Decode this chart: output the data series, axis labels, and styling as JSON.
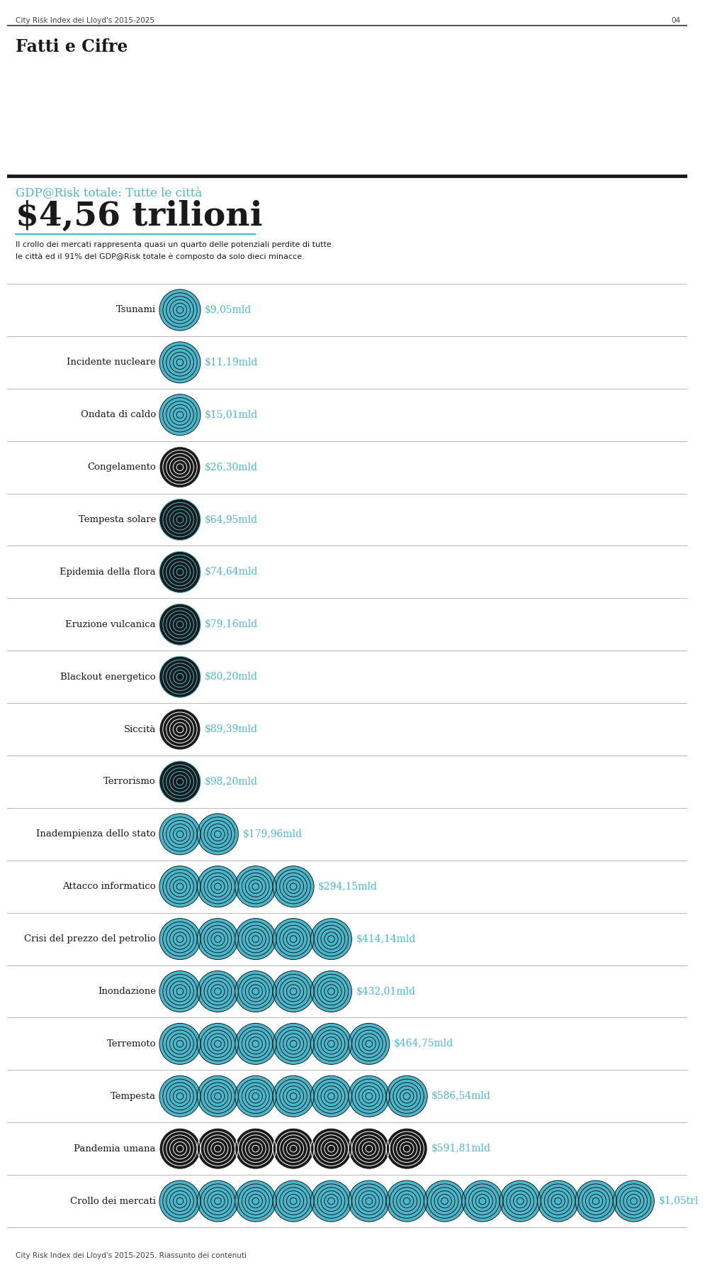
{
  "header_line1": "City Risk Index dei Lloyd's 2015-2025",
  "header_page": "04",
  "section_title": "Fatti e Cifre",
  "gdp_label": "GDP@Risk totale: Tutte le città",
  "gdp_value": "$4,56 trilioni",
  "description_line1": "Il crollo dei mercati rappresenta quasi un quarto delle potenziali perdite di tutte",
  "description_line2": "le città ed il 91% del GDP@Risk totale è composto da solo dieci minacce.",
  "footer": "City Risk Index dei Lloyd's 2015-2025. Riassunto dei contenuti",
  "categories": [
    "Tsunami",
    "Incidente nucleare",
    "Ondata di caldo",
    "Congelamento",
    "Tempesta solare",
    "Epidemia della flora",
    "Eruzione vulcanica",
    "Blackout energetico",
    "Siccità",
    "Terrorismo",
    "Inadempienza dello stato",
    "Attacco informatico",
    "Crisi del prezzo del petrolio",
    "Inondazione",
    "Terremoto",
    "Tempesta",
    "Pandemia umana",
    "Crollo dei mercati"
  ],
  "values_str": [
    "$9,05mld",
    "$11,19mld",
    "$15,01mld",
    "$26,30mld",
    "$64,95mld",
    "$74,64mld",
    "$79,16mld",
    "$80,20mld",
    "$89,39mld",
    "$98,20mld",
    "$179,96mld",
    "$294,15mld",
    "$414,14mld",
    "$432,01mld",
    "$464,75mld",
    "$586,54mld",
    "$591,81mld",
    "$1,05trl"
  ],
  "values": [
    9.05,
    11.19,
    15.01,
    26.3,
    64.95,
    74.64,
    79.16,
    80.2,
    89.39,
    98.2,
    179.96,
    294.15,
    414.14,
    432.01,
    464.75,
    586.54,
    591.81,
    1050.0
  ],
  "row_colors": [
    {
      "bg": "#4ab8cc",
      "stripe": "#1a1a1a",
      "icon_bg": "#4ab8cc"
    },
    {
      "bg": "#4ab8cc",
      "stripe": "#1a1a1a",
      "icon_bg": "#4ab8cc"
    },
    {
      "bg": "#4ab8cc",
      "stripe": "#1a1a1a",
      "icon_bg": "#4ab8cc"
    },
    {
      "bg": "#1a1a1a",
      "stripe": "#ffffff",
      "icon_bg": "#1a1a1a"
    },
    {
      "bg": "#1a1a1a",
      "stripe": "#4ab8cc",
      "icon_bg": "#1a1a1a"
    },
    {
      "bg": "#1a1a1a",
      "stripe": "#4ab8cc",
      "icon_bg": "#1a1a1a"
    },
    {
      "bg": "#1a1a1a",
      "stripe": "#4ab8cc",
      "icon_bg": "#1a1a1a"
    },
    {
      "bg": "#1a1a1a",
      "stripe": "#4ab8cc",
      "icon_bg": "#1a1a1a"
    },
    {
      "bg": "#1a1a1a",
      "stripe": "#ffffff",
      "icon_bg": "#1a1a1a"
    },
    {
      "bg": "#1a1a1a",
      "stripe": "#4ab8cc",
      "icon_bg": "#4ab8cc"
    },
    {
      "bg": "#4ab8cc",
      "stripe": "#1a1a1a",
      "icon_bg": "#4ab8cc"
    },
    {
      "bg": "#4ab8cc",
      "stripe": "#1a1a1a",
      "icon_bg": "#4ab8cc"
    },
    {
      "bg": "#4ab8cc",
      "stripe": "#1a1a1a",
      "icon_bg": "#4ab8cc"
    },
    {
      "bg": "#4ab8cc",
      "stripe": "#1a1a1a",
      "icon_bg": "#4ab8cc"
    },
    {
      "bg": "#4ab8cc",
      "stripe": "#1a1a1a",
      "icon_bg": "#4ab8cc"
    },
    {
      "bg": "#4ab8cc",
      "stripe": "#1a1a1a",
      "icon_bg": "#4ab8cc"
    },
    {
      "bg": "#1a1a1a",
      "stripe": "#ffffff",
      "icon_bg": "#4ab8cc"
    },
    {
      "bg": "#4ab8cc",
      "stripe": "#1a1a1a",
      "icon_bg": "#4ab8cc"
    }
  ],
  "bg_color": "#ffffff",
  "text_color": "#1a1a1a",
  "cyan_color": "#4ab8cc",
  "divider_color": "#aaaaaa",
  "label_color": "#1a1a1a",
  "value_color": "#4ab8cc"
}
